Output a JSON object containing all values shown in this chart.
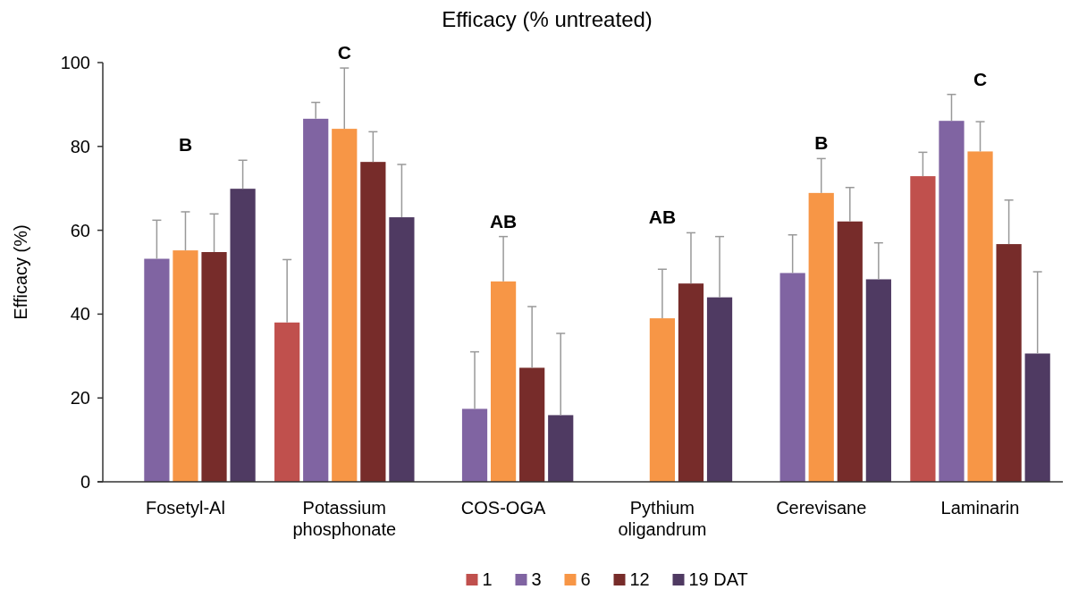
{
  "chart_data": {
    "type": "bar",
    "title": "Efficacy (% untreated)",
    "ylabel": "Efficacy (%)",
    "categories": [
      "Fosetyl-Al",
      "Potassium phosphonate",
      "COS-OGA",
      "Pythium oligandrum",
      "Cerevisane",
      "Laminarin"
    ],
    "series": [
      {
        "name": "1",
        "color": "#c0504d",
        "values": [
          null,
          38.0,
          null,
          null,
          null,
          72.9
        ],
        "errors": [
          null,
          [
            38.0,
            53.0
          ],
          null,
          null,
          null,
          [
            72.9,
            78.6
          ]
        ]
      },
      {
        "name": "3",
        "color": "#8064a2",
        "values": [
          53.2,
          86.6,
          17.4,
          null,
          49.8,
          86.1
        ],
        "errors": [
          [
            53.2,
            62.4
          ],
          [
            86.6,
            90.5
          ],
          [
            17.4,
            31.0
          ],
          null,
          [
            49.8,
            58.9
          ],
          [
            86.1,
            92.4
          ]
        ]
      },
      {
        "name": "6",
        "color": "#f79646",
        "values": [
          55.2,
          84.2,
          47.8,
          39.0,
          68.9,
          78.8
        ],
        "errors": [
          [
            55.2,
            64.4
          ],
          [
            84.2,
            98.7
          ],
          [
            47.8,
            58.5
          ],
          [
            39.0,
            50.7
          ],
          [
            68.9,
            77.1
          ],
          [
            78.8,
            85.9
          ]
        ]
      },
      {
        "name": "12",
        "color": "#772c2a",
        "values": [
          54.8,
          76.3,
          27.2,
          47.3,
          62.1,
          56.7
        ],
        "errors": [
          [
            54.8,
            63.9
          ],
          [
            76.3,
            83.5
          ],
          [
            27.2,
            41.8
          ],
          [
            47.3,
            59.4
          ],
          [
            62.1,
            70.2
          ],
          [
            56.7,
            67.2
          ]
        ]
      },
      {
        "name": "19 DAT",
        "color": "#4f3a62",
        "values": [
          69.9,
          63.1,
          15.9,
          44.0,
          48.3,
          30.6
        ],
        "errors": [
          [
            69.9,
            76.7
          ],
          [
            63.1,
            75.7
          ],
          [
            15.9,
            35.4
          ],
          [
            44.0,
            58.5
          ],
          [
            48.3,
            57.0
          ],
          [
            30.6,
            50.1
          ]
        ]
      }
    ],
    "ylim": [
      0,
      100
    ],
    "yticks": [
      0,
      20,
      40,
      60,
      80,
      100
    ],
    "grid": false,
    "legend": "bottom",
    "annotations": [
      "B",
      "C",
      "AB",
      "AB",
      "B",
      "C"
    ]
  }
}
